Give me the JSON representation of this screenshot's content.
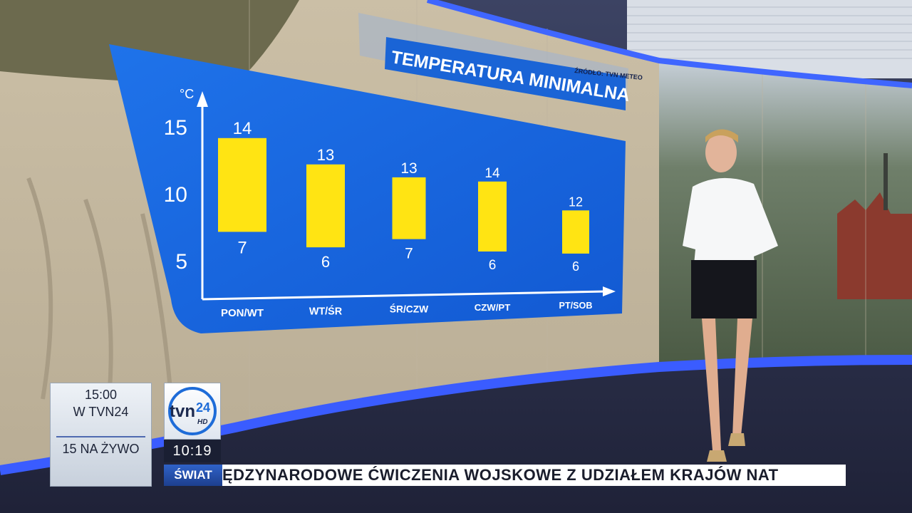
{
  "colors": {
    "panel": "#1565e0",
    "bar": "#ffe413",
    "title_band": "#1a64d6",
    "ticker_category": "#2b5cc4"
  },
  "graphic": {
    "title": "TEMPERATURA MINIMALNA",
    "source": "ŹRÓDŁO: TVN METEO"
  },
  "chart_data": {
    "type": "bar",
    "title": "TEMPERATURA MINIMALNA",
    "ylabel": "°C",
    "yticks": [
      5,
      10,
      15
    ],
    "ylim": [
      2,
      16.5
    ],
    "categories": [
      "PON/WT",
      "WT/ŚR",
      "ŚR/CZW",
      "CZW/PT",
      "PT/SOB"
    ],
    "series": [
      {
        "values": [
          14,
          13,
          13,
          14,
          12
        ]
      },
      {
        "values": [
          7,
          6,
          7,
          6,
          6
        ]
      }
    ]
  },
  "overlay": {
    "next_time": "15:00",
    "next_channel": "W TVN24",
    "next_program": "15 NA ŻYWO",
    "logo_text": "tvn",
    "logo_number": "24",
    "logo_hd": "HD",
    "clock": "10:19",
    "ticker_category": "ŚWIAT",
    "ticker_text": "ĘDZYNARODOWE ĆWICZENIA WOJSKOWE Z UDZIAŁEM KRAJÓW NAT"
  }
}
